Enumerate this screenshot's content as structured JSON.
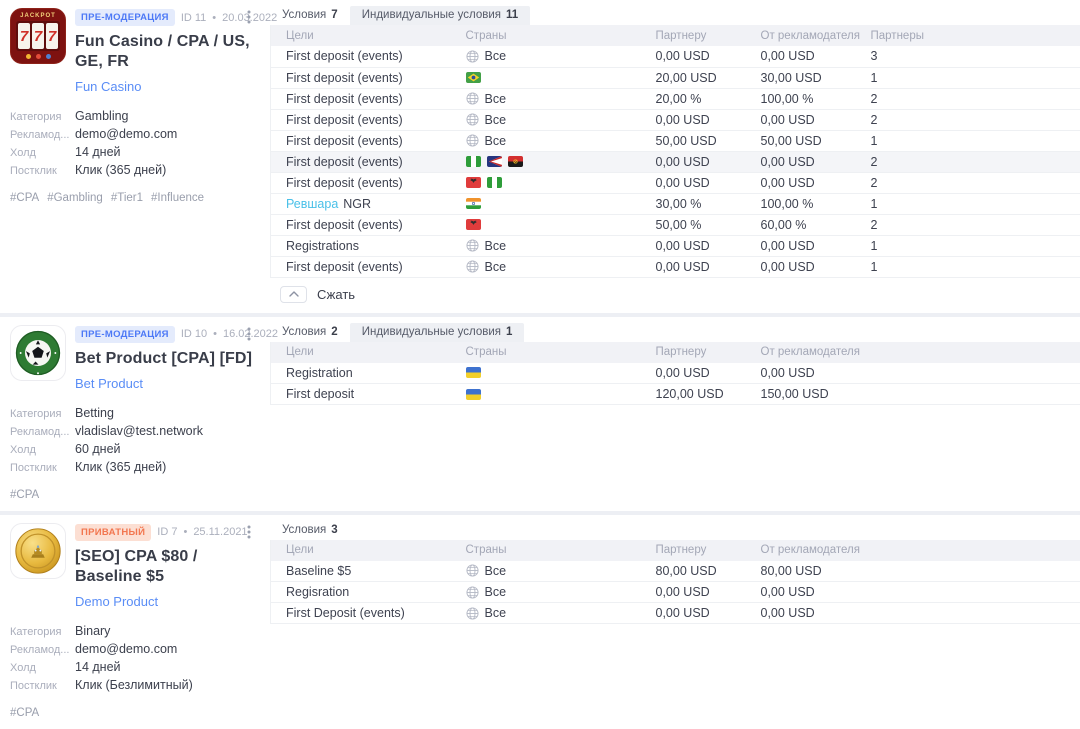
{
  "labels": {
    "countries_all": "Все",
    "meta_separator": "•"
  },
  "colors": {
    "badge_blue_text": "#4d79f6",
    "badge_blue_bg": "#e4ebfc",
    "badge_orange_text": "#f2764f",
    "badge_orange_bg": "#fcdfd3",
    "link_blue": "#5a8df6",
    "link_cyan": "#49c0e8",
    "table_header_bg": "#f1f2f6",
    "row_highlight_bg": "#f4f5f8"
  },
  "icons": {
    "countries_all": "globe-icon",
    "offer_menu": "kebab-menu-icon",
    "collapse": "chevron-up-icon"
  },
  "offers": [
    {
      "icon": "slot-machine",
      "icon_text": "JACKPOT 777",
      "badge": {
        "label": "ПРЕ-МОДЕРАЦИЯ",
        "style": "blue"
      },
      "id_label": "ID 11",
      "date": "20.03.2022",
      "title": "Fun Casino / CPA / US, GE, FR",
      "product": "Fun Casino",
      "fields": [
        {
          "label": "Категория",
          "value": "Gambling"
        },
        {
          "label": "Рекламод...",
          "value": "demo@demo.com"
        },
        {
          "label": "Холд",
          "value": "14 дней"
        },
        {
          "label": "Постклик",
          "value": "Клик (365 дней)"
        }
      ],
      "tags": [
        "#CPA",
        "#Gambling",
        "#Tier1",
        "#Influence"
      ],
      "tabs": [
        {
          "name": "tab-conditions",
          "label": "Условия",
          "count": "7",
          "active": true
        },
        {
          "name": "tab-individual-conditions",
          "label": "Индивидуальные условия",
          "count": "11",
          "active": false
        }
      ],
      "columns": [
        "Цели",
        "Страны",
        "Партнеру",
        "От рекламодателя",
        "Партнеры"
      ],
      "rows": [
        {
          "goal": "First deposit (events)",
          "countries": "all",
          "partner": "0,00 USD",
          "advertiser": "0,00 USD",
          "partners": "3"
        },
        {
          "goal": "First deposit (events)",
          "countries": [
            "br"
          ],
          "partner": "20,00 USD",
          "advertiser": "30,00 USD",
          "partners": "1"
        },
        {
          "goal": "First deposit (events)",
          "countries": "all",
          "partner": "20,00 %",
          "advertiser": "100,00 %",
          "partners": "2"
        },
        {
          "goal": "First deposit (events)",
          "countries": "all",
          "partner": "0,00 USD",
          "advertiser": "0,00 USD",
          "partners": "2"
        },
        {
          "goal": "First deposit (events)",
          "countries": "all",
          "partner": "50,00 USD",
          "advertiser": "50,00 USD",
          "partners": "1"
        },
        {
          "goal": "First deposit (events)",
          "countries": [
            "ng",
            "as",
            "ao"
          ],
          "partner": "0,00 USD",
          "advertiser": "0,00 USD",
          "partners": "2",
          "highlighted": true
        },
        {
          "goal": "First deposit (events)",
          "countries": [
            "al",
            "ng"
          ],
          "partner": "0,00 USD",
          "advertiser": "0,00 USD",
          "partners": "2"
        },
        {
          "goal_link": "Ревшара",
          "goal": "NGR",
          "countries": [
            "in"
          ],
          "partner": "30,00 %",
          "advertiser": "100,00 %",
          "partners": "1"
        },
        {
          "goal": "First deposit (events)",
          "countries": [
            "al"
          ],
          "partner": "50,00 %",
          "advertiser": "60,00 %",
          "partners": "2"
        },
        {
          "goal": "Registrations",
          "countries": "all",
          "partner": "0,00 USD",
          "advertiser": "0,00 USD",
          "partners": "1"
        },
        {
          "goal": "First deposit (events)",
          "countries": "all",
          "partner": "0,00 USD",
          "advertiser": "0,00 USD",
          "partners": "1"
        }
      ],
      "collapse_label": "Сжать"
    },
    {
      "icon": "soccer-ball",
      "badge": {
        "label": "ПРЕ-МОДЕРАЦИЯ",
        "style": "blue"
      },
      "id_label": "ID 10",
      "date": "16.02.2022",
      "title": "Bet Product [CPA] [FD]",
      "product": "Bet Product",
      "fields": [
        {
          "label": "Категория",
          "value": "Betting"
        },
        {
          "label": "Рекламод...",
          "value": "vladislav@test.network"
        },
        {
          "label": "Холд",
          "value": "60 дней"
        },
        {
          "label": "Постклик",
          "value": "Клик (365 дней)"
        }
      ],
      "tags": [
        "#CPA"
      ],
      "tabs": [
        {
          "name": "tab-conditions",
          "label": "Условия",
          "count": "2",
          "active": true
        },
        {
          "name": "tab-individual-conditions",
          "label": "Индивидуальные условия",
          "count": "1",
          "active": false
        }
      ],
      "columns": [
        "Цели",
        "Страны",
        "Партнеру",
        "От рекламодателя"
      ],
      "rows": [
        {
          "goal": "Registration",
          "countries": [
            "ua"
          ],
          "partner": "0,00 USD",
          "advertiser": "0,00 USD"
        },
        {
          "goal": "First deposit",
          "countries": [
            "ua"
          ],
          "partner": "120,00 USD",
          "advertiser": "150,00 USD"
        }
      ],
      "collapse_label": null
    },
    {
      "icon": "gold-coin",
      "badge": {
        "label": "ПРИВАТНЫЙ",
        "style": "orange"
      },
      "id_label": "ID 7",
      "date": "25.11.2021",
      "title": "[SEO] CPA $80 / Baseline $5",
      "product": "Demo Product",
      "fields": [
        {
          "label": "Категория",
          "value": "Binary"
        },
        {
          "label": "Рекламод...",
          "value": "demo@demo.com"
        },
        {
          "label": "Холд",
          "value": "14 дней"
        },
        {
          "label": "Постклик",
          "value": "Клик (Безлимитный)"
        }
      ],
      "tags": [
        "#CPA"
      ],
      "tabs": [
        {
          "name": "tab-conditions",
          "label": "Условия",
          "count": "3",
          "active": true
        }
      ],
      "columns": [
        "Цели",
        "Страны",
        "Партнеру",
        "От рекламодателя"
      ],
      "rows": [
        {
          "goal": "Baseline $5",
          "countries": "all",
          "partner": "80,00 USD",
          "advertiser": "80,00 USD"
        },
        {
          "goal": "Regisration",
          "countries": "all",
          "partner": "0,00 USD",
          "advertiser": "0,00 USD"
        },
        {
          "goal": "First Deposit (events)",
          "countries": "all",
          "partner": "0,00 USD",
          "advertiser": "0,00 USD"
        }
      ],
      "collapse_label": null
    }
  ]
}
